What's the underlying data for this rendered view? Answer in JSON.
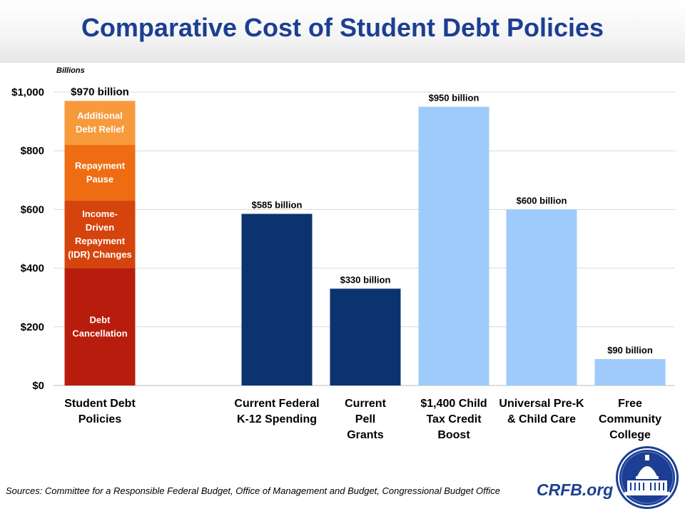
{
  "title": "Comparative Cost of Student Debt Policies",
  "sources": "Sources: Committee for a Responsible Federal Budget, Office of Management and Budget, Congressional Budget Office",
  "brand": "CRFB.org",
  "colors": {
    "title": "#1c3f94",
    "dark_blue": "#0b3370",
    "light_blue": "#9ecbfb",
    "debt_cancellation": "#b81c0c",
    "idr_changes": "#d6440e",
    "repayment_pause": "#ee6d12",
    "additional_relief": "#f79a3c"
  },
  "chart_data": {
    "type": "bar",
    "unit_label": "Billions",
    "ylim": [
      0,
      1000
    ],
    "yticks": [
      "$0",
      "$200",
      "$400",
      "$600",
      "$800",
      "$1,000"
    ],
    "ytick_values": [
      0,
      200,
      400,
      600,
      800,
      1000
    ],
    "grid": true,
    "categories": [
      [
        "Student Debt",
        "Policies"
      ],
      [
        "Current Federal",
        "K-12 Spending"
      ],
      [
        "Current",
        "Pell",
        "Grants"
      ],
      [
        "$1,400 Child",
        "Tax Credit",
        "Boost"
      ],
      [
        "Universal Pre-K",
        "& Child Care"
      ],
      [
        "Free",
        "Community",
        "College"
      ]
    ],
    "stack": {
      "total": 970,
      "total_label": "$970 billion",
      "segments": [
        {
          "name": [
            "Debt",
            "Cancellation"
          ],
          "value": 400,
          "color": "#b81c0c"
        },
        {
          "name": [
            "Income-",
            "Driven",
            "Repayment",
            "(IDR) Changes"
          ],
          "value": 230,
          "color": "#d6440e"
        },
        {
          "name": [
            "Repayment",
            "Pause"
          ],
          "value": 190,
          "color": "#ee6d12"
        },
        {
          "name": [
            "Additional",
            "Debt Relief"
          ],
          "value": 150,
          "color": "#f79a3c"
        }
      ]
    },
    "bars": [
      {
        "value": 585,
        "label": "$585 billion",
        "color": "#0b3370"
      },
      {
        "value": 330,
        "label": "$330 billion",
        "color": "#0b3370"
      },
      {
        "value": 950,
        "label": "$950 billion",
        "color": "#9ecbfb"
      },
      {
        "value": 600,
        "label": "$600 billion",
        "color": "#9ecbfb"
      },
      {
        "value": 90,
        "label": "$90 billion",
        "color": "#9ecbfb"
      }
    ]
  }
}
